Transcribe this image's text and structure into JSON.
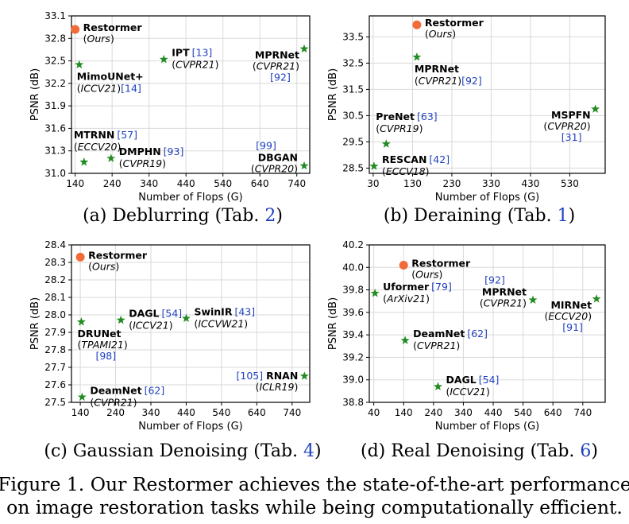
{
  "figure_caption": [
    "Figure 1. Our Restormer achieves the state-of-the-art performance",
    "on image restoration tasks while being computationally efficient."
  ],
  "colors": {
    "ours": "#f26b38",
    "others": "#228b22",
    "cite": "#1f3fbf",
    "axis": "#000000",
    "grid": "#d9d9d9"
  },
  "chart_data": [
    {
      "type": "scatter",
      "caption": {
        "prefix": "(a) Deblurring (Tab. ",
        "ref": "2",
        "suffix": ")"
      },
      "xlabel": "Number of Flops (G)",
      "ylabel": "PSNR (dB)",
      "xlim": [
        130,
        775
      ],
      "ylim": [
        31.0,
        33.1
      ],
      "xticks": [
        140,
        240,
        340,
        440,
        540,
        640,
        740
      ],
      "yticks": [
        31.0,
        31.3,
        31.6,
        31.9,
        32.2,
        32.5,
        32.8,
        33.1
      ],
      "ytick_format": 1,
      "points": [
        {
          "name": "Restormer",
          "venue": "Ours",
          "cite": "",
          "x": 140,
          "y": 32.92,
          "ours": true,
          "layout": "right"
        },
        {
          "name": "MimoUNet+",
          "venue": "ICCV21",
          "cite": "[14]",
          "x": 151,
          "y": 32.45,
          "ours": false,
          "layout": "below-inline"
        },
        {
          "name": "IPT",
          "venue": "CVPR21",
          "cite": "[13]",
          "x": 380,
          "y": 32.52,
          "ours": false,
          "layout": "right-inline"
        },
        {
          "name": "MPRNet",
          "venue": "CVPR21",
          "cite": "[92]",
          "x": 760,
          "y": 32.66,
          "ours": false,
          "layout": "left-3"
        },
        {
          "name": "MTRNN",
          "venue": "ECCV20",
          "cite": "[57]",
          "x": 164,
          "y": 31.15,
          "ours": false,
          "layout": "above-inline"
        },
        {
          "name": "DMPHN",
          "venue": "CVPR19",
          "cite": "[93]",
          "x": 237,
          "y": 31.2,
          "ours": false,
          "layout": "right-inline"
        },
        {
          "name": "DBGAN",
          "venue": "CVPR20",
          "cite": "[99]",
          "x": 760,
          "y": 31.1,
          "ours": false,
          "layout": "left-cite-top"
        }
      ]
    },
    {
      "type": "scatter",
      "caption": {
        "prefix": "(b) Deraining (Tab. ",
        "ref": "1",
        "suffix": ")"
      },
      "xlabel": "Number of Flops (G)",
      "ylabel": "PSNR (dB)",
      "xlim": [
        20,
        620
      ],
      "ylim": [
        28.3,
        34.3
      ],
      "xticks": [
        30,
        130,
        230,
        330,
        430,
        530
      ],
      "yticks": [
        28.5,
        29.5,
        30.5,
        31.5,
        32.5,
        33.5
      ],
      "ytick_format": 1,
      "points": [
        {
          "name": "Restormer",
          "venue": "Ours",
          "cite": "",
          "x": 141,
          "y": 33.96,
          "ours": true,
          "layout": "right"
        },
        {
          "name": "MPRNet",
          "venue": "CVPR21",
          "cite": "[92]",
          "x": 141,
          "y": 32.73,
          "ours": false,
          "layout": "below-inline"
        },
        {
          "name": "MSPFN",
          "venue": "CVPR20",
          "cite": "[31]",
          "x": 595,
          "y": 30.75,
          "ours": false,
          "layout": "left-3"
        },
        {
          "name": "PreNet",
          "venue": "CVPR19",
          "cite": "[63]",
          "x": 63,
          "y": 29.42,
          "ours": false,
          "layout": "above-inline"
        },
        {
          "name": "RESCAN",
          "venue": "ECCV18",
          "cite": "[42]",
          "x": 32,
          "y": 28.57,
          "ours": false,
          "layout": "right-inline"
        }
      ]
    },
    {
      "type": "scatter",
      "caption": {
        "prefix": "(c) Gaussian Denoising (Tab. ",
        "ref": "4",
        "suffix": ")"
      },
      "xlabel": "Number of Flops (G)",
      "ylabel": "PSNR (dB)",
      "xlim": [
        115,
        790
      ],
      "ylim": [
        27.5,
        28.4
      ],
      "xticks": [
        140,
        240,
        340,
        440,
        540,
        640,
        740
      ],
      "yticks": [
        27.5,
        27.6,
        27.7,
        27.8,
        27.9,
        28.0,
        28.1,
        28.2,
        28.3,
        28.4
      ],
      "ytick_format": 1,
      "points": [
        {
          "name": "Restormer",
          "venue": "Ours",
          "cite": "",
          "x": 140,
          "y": 28.33,
          "ours": true,
          "layout": "right"
        },
        {
          "name": "DRUNet",
          "venue": "TPAMI21",
          "cite": "[98]",
          "x": 143,
          "y": 27.96,
          "ours": false,
          "layout": "below-3"
        },
        {
          "name": "DAGL",
          "venue": "ICCV21",
          "cite": "[54]",
          "x": 255,
          "y": 27.97,
          "ours": false,
          "layout": "right-inline"
        },
        {
          "name": "SwinIR",
          "venue": "ICCVW21",
          "cite": "[43]",
          "x": 440,
          "y": 27.98,
          "ours": false,
          "layout": "right-inline"
        },
        {
          "name": "DeamNet",
          "venue": "CVPR21",
          "cite": "[62]",
          "x": 145,
          "y": 27.53,
          "ours": false,
          "layout": "right-inline"
        },
        {
          "name": "RNAN",
          "venue": "ICLR19",
          "cite": "[105]",
          "x": 775,
          "y": 27.65,
          "ours": false,
          "layout": "left-cite-left"
        }
      ]
    },
    {
      "type": "scatter",
      "caption": {
        "prefix": "(d) Real Denoising (Tab. ",
        "ref": "6",
        "suffix": ")"
      },
      "xlabel": "Number of Flops (G)",
      "ylabel": "PSNR (dB)",
      "xlim": [
        25,
        815
      ],
      "ylim": [
        38.8,
        40.2
      ],
      "xticks": [
        40,
        140,
        240,
        340,
        440,
        540,
        640,
        740
      ],
      "yticks": [
        38.8,
        39.0,
        39.2,
        39.4,
        39.6,
        39.8,
        40.0,
        40.2
      ],
      "ytick_format": 1,
      "points": [
        {
          "name": "Restormer",
          "venue": "Ours",
          "cite": "",
          "x": 140,
          "y": 40.02,
          "ours": true,
          "layout": "right"
        },
        {
          "name": "Uformer",
          "venue": "ArXiv21",
          "cite": "[79]",
          "x": 44,
          "y": 39.77,
          "ours": false,
          "layout": "right-inline"
        },
        {
          "name": "MPRNet",
          "venue": "CVPR21",
          "cite": "[92]",
          "x": 573,
          "y": 39.71,
          "ours": false,
          "layout": "left-cite-top"
        },
        {
          "name": "MIRNet",
          "venue": "ECCV20",
          "cite": "[91]",
          "x": 786,
          "y": 39.72,
          "ours": false,
          "layout": "left-3"
        },
        {
          "name": "DeamNet",
          "venue": "CVPR21",
          "cite": "[62]",
          "x": 145,
          "y": 39.35,
          "ours": false,
          "layout": "right-inline"
        },
        {
          "name": "DAGL",
          "venue": "ICCV21",
          "cite": "[54]",
          "x": 255,
          "y": 38.94,
          "ours": false,
          "layout": "right-inline"
        }
      ]
    }
  ]
}
